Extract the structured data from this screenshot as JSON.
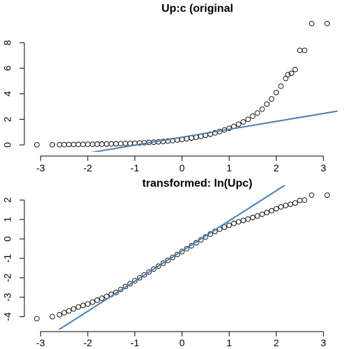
{
  "chart_data": [
    {
      "type": "scatter",
      "title": "Up:c (original",
      "xlabel": "",
      "ylabel": "",
      "xlim": [
        -3.3,
        3.3
      ],
      "ylim": [
        0,
        9.6
      ],
      "xticks": [
        -3,
        -2,
        -1,
        0,
        1,
        2,
        3
      ],
      "yticks": [
        0,
        2,
        4,
        6,
        8
      ],
      "grid": false,
      "series": [
        {
          "points": [
            [
              -3.08,
              0.01
            ],
            [
              -2.75,
              0.01
            ],
            [
              -2.6,
              0.02
            ],
            [
              -2.5,
              0.02
            ],
            [
              -2.4,
              0.03
            ],
            [
              -2.3,
              0.03
            ],
            [
              -2.2,
              0.04
            ],
            [
              -2.1,
              0.04
            ],
            [
              -2.0,
              0.05
            ],
            [
              -1.9,
              0.05
            ],
            [
              -1.8,
              0.06
            ],
            [
              -1.7,
              0.06
            ],
            [
              -1.6,
              0.07
            ],
            [
              -1.5,
              0.08
            ],
            [
              -1.4,
              0.09
            ],
            [
              -1.3,
              0.1
            ],
            [
              -1.2,
              0.11
            ],
            [
              -1.1,
              0.12
            ],
            [
              -1.0,
              0.13
            ],
            [
              -0.9,
              0.15
            ],
            [
              -0.8,
              0.17
            ],
            [
              -0.7,
              0.19
            ],
            [
              -0.6,
              0.21
            ],
            [
              -0.5,
              0.24
            ],
            [
              -0.4,
              0.27
            ],
            [
              -0.3,
              0.3
            ],
            [
              -0.2,
              0.34
            ],
            [
              -0.1,
              0.38
            ],
            [
              0.0,
              0.43
            ],
            [
              0.1,
              0.48
            ],
            [
              0.2,
              0.54
            ],
            [
              0.3,
              0.6
            ],
            [
              0.4,
              0.67
            ],
            [
              0.5,
              0.75
            ],
            [
              0.6,
              0.84
            ],
            [
              0.7,
              0.94
            ],
            [
              0.8,
              1.05
            ],
            [
              0.9,
              1.17
            ],
            [
              1.0,
              1.3
            ],
            [
              1.1,
              1.45
            ],
            [
              1.2,
              1.62
            ],
            [
              1.3,
              1.8
            ],
            [
              1.4,
              2.0
            ],
            [
              1.5,
              2.25
            ],
            [
              1.6,
              2.5
            ],
            [
              1.7,
              2.8
            ],
            [
              1.8,
              3.2
            ],
            [
              1.9,
              3.6
            ],
            [
              2.0,
              4.1
            ],
            [
              2.1,
              4.6
            ],
            [
              2.2,
              5.2
            ],
            [
              2.25,
              5.5
            ],
            [
              2.32,
              5.6
            ],
            [
              2.4,
              5.9
            ],
            [
              2.5,
              7.4
            ],
            [
              2.6,
              7.4
            ],
            [
              2.75,
              9.5
            ],
            [
              3.08,
              9.5
            ]
          ]
        }
      ],
      "reference_line": {
        "intercept": 0.6,
        "slope": 0.62
      }
    },
    {
      "type": "scatter",
      "title": "transformed: ln(Upc)",
      "xlabel": "",
      "ylabel": "",
      "xlim": [
        -3.3,
        3.3
      ],
      "ylim": [
        -4.3,
        2.4
      ],
      "xticks": [
        -3,
        -2,
        -1,
        0,
        1,
        2,
        3
      ],
      "yticks": [
        -4,
        -3,
        -2,
        -1,
        0,
        1,
        2
      ],
      "grid": false,
      "series": [
        {
          "points": [
            [
              -3.08,
              -4.1
            ],
            [
              -2.75,
              -4.0
            ],
            [
              -2.6,
              -3.9
            ],
            [
              -2.5,
              -3.8
            ],
            [
              -2.4,
              -3.7
            ],
            [
              -2.3,
              -3.6
            ],
            [
              -2.2,
              -3.5
            ],
            [
              -2.1,
              -3.42
            ],
            [
              -2.0,
              -3.35
            ],
            [
              -1.9,
              -3.25
            ],
            [
              -1.8,
              -3.15
            ],
            [
              -1.7,
              -3.05
            ],
            [
              -1.6,
              -2.95
            ],
            [
              -1.5,
              -2.85
            ],
            [
              -1.4,
              -2.75
            ],
            [
              -1.3,
              -2.6
            ],
            [
              -1.2,
              -2.45
            ],
            [
              -1.1,
              -2.3
            ],
            [
              -1.0,
              -2.15
            ],
            [
              -0.9,
              -2.0
            ],
            [
              -0.8,
              -1.85
            ],
            [
              -0.7,
              -1.7
            ],
            [
              -0.6,
              -1.55
            ],
            [
              -0.5,
              -1.4
            ],
            [
              -0.4,
              -1.25
            ],
            [
              -0.3,
              -1.1
            ],
            [
              -0.2,
              -0.95
            ],
            [
              -0.1,
              -0.8
            ],
            [
              0.0,
              -0.65
            ],
            [
              0.1,
              -0.5
            ],
            [
              0.2,
              -0.35
            ],
            [
              0.3,
              -0.2
            ],
            [
              0.4,
              -0.05
            ],
            [
              0.5,
              0.1
            ],
            [
              0.6,
              0.25
            ],
            [
              0.7,
              0.38
            ],
            [
              0.8,
              0.5
            ],
            [
              0.9,
              0.6
            ],
            [
              1.0,
              0.7
            ],
            [
              1.1,
              0.8
            ],
            [
              1.2,
              0.88
            ],
            [
              1.3,
              0.95
            ],
            [
              1.4,
              1.02
            ],
            [
              1.5,
              1.1
            ],
            [
              1.6,
              1.18
            ],
            [
              1.7,
              1.27
            ],
            [
              1.8,
              1.36
            ],
            [
              1.9,
              1.45
            ],
            [
              2.0,
              1.55
            ],
            [
              2.1,
              1.65
            ],
            [
              2.2,
              1.72
            ],
            [
              2.3,
              1.78
            ],
            [
              2.4,
              1.85
            ],
            [
              2.5,
              1.98
            ],
            [
              2.6,
              2.0
            ],
            [
              2.75,
              2.25
            ],
            [
              3.08,
              2.25
            ]
          ]
        }
      ],
      "reference_line": {
        "intercept": -0.62,
        "slope": 1.55
      }
    }
  ]
}
